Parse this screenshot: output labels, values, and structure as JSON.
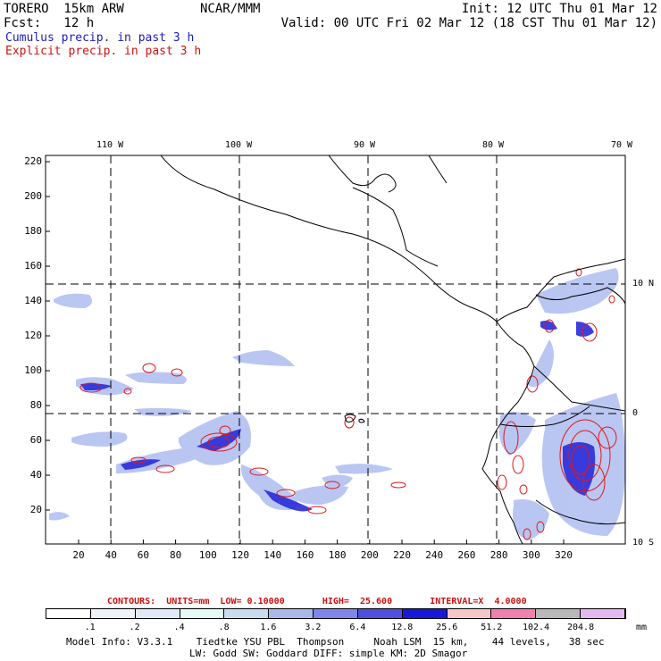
{
  "header": {
    "model": "TORERO  15km ARW",
    "center": "NCAR/MMM",
    "init": "Init: 12 UTC Thu 01 Mar 12",
    "fcst": "Fcst:   12 h",
    "valid": "Valid: 00 UTC Fri 02 Mar 12 (18 CST Thu 01 Mar 12)",
    "legend1": "Cumulus precip. in past 3 h",
    "legend2": "Explicit precip. in past 3 h"
  },
  "axes": {
    "x_ticks": [
      "20",
      "40",
      "60",
      "80",
      "100",
      "120",
      "140",
      "160",
      "180",
      "200",
      "220",
      "240",
      "260",
      "280",
      "300",
      "320"
    ],
    "y_ticks": [
      "20",
      "40",
      "60",
      "80",
      "100",
      "120",
      "140",
      "160",
      "180",
      "200",
      "220"
    ],
    "lon_labels": [
      "110 W",
      "100 W",
      "90 W",
      "80 W",
      "70 W"
    ],
    "lat_labels": [
      "10 N",
      "0",
      "10 S"
    ]
  },
  "contours_line": "CONTOURS:  UNITS=mm  LOW= 0.10000       HIGH=  25.600       INTERVAL=X  4.0000",
  "colorbar": {
    "labels": [
      ".1",
      ".2",
      ".4",
      ".8",
      "1.6",
      "3.2",
      "6.4",
      "12.8",
      "25.6",
      "51.2",
      "102.4",
      "204.8"
    ],
    "colors": [
      "#ffffff",
      "#eef4fa",
      "#dfeaf6",
      "#e6faf8",
      "#c8dcf0",
      "#a9b9ea",
      "#7f86e8",
      "#5050e0",
      "#1818d8",
      "#f5c8c8",
      "#f080b0",
      "#b8b8b8",
      "#e6b8f0"
    ],
    "unit": "mm"
  },
  "info": {
    "line1": "Model Info: V3.3.1    Tiedtke YSU PBL  Thompson     Noah LSM  15 km,    44 levels,   38 sec",
    "line2": "LW: Godd SW: Goddard DIFF: simple KM: 2D Smagor"
  }
}
